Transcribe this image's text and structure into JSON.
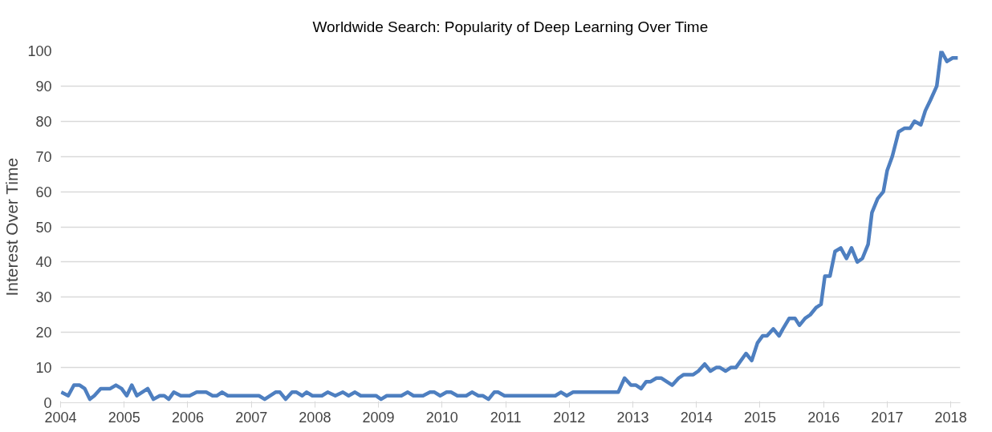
{
  "chart_data": {
    "type": "line",
    "title": "Worldwide Search: Popularity of Deep Learning Over Time",
    "ylabel": "Interest Over Time",
    "xlim": [
      2004,
      2018.15
    ],
    "xticks": [
      2004,
      2005,
      2006,
      2007,
      2008,
      2009,
      2010,
      2011,
      2012,
      2013,
      2014,
      2015,
      2016,
      2017,
      2018
    ],
    "ylim": [
      0,
      100
    ],
    "yticks": [
      0,
      10,
      20,
      30,
      40,
      50,
      60,
      70,
      80,
      90,
      100
    ],
    "grid": "y",
    "marker": "none",
    "line_style": "solid",
    "series": [
      {
        "color": "#4e7fc0",
        "x": [
          2004.01,
          2004.12,
          2004.21,
          2004.3,
          2004.38,
          2004.46,
          2004.53,
          2004.63,
          2004.78,
          2004.87,
          2004.96,
          2005.04,
          2005.12,
          2005.2,
          2005.37,
          2005.46,
          2005.56,
          2005.63,
          2005.7,
          2005.78,
          2005.89,
          2006.03,
          2006.14,
          2006.29,
          2006.39,
          2006.46,
          2006.54,
          2006.63,
          2007.12,
          2007.21,
          2007.38,
          2007.45,
          2007.54,
          2007.64,
          2007.71,
          2007.8,
          2007.87,
          2007.96,
          2008.11,
          2008.2,
          2008.32,
          2008.44,
          2008.53,
          2008.63,
          2008.72,
          2008.96,
          2009.04,
          2009.13,
          2009.36,
          2009.46,
          2009.55,
          2009.7,
          2009.81,
          2009.88,
          2009.97,
          2010.07,
          2010.14,
          2010.24,
          2010.38,
          2010.47,
          2010.57,
          2010.64,
          2010.73,
          2010.82,
          2010.88,
          2010.98,
          2011.78,
          2011.87,
          2011.96,
          2012.06,
          2012.77,
          2012.87,
          2012.97,
          2013.05,
          2013.13,
          2013.21,
          2013.28,
          2013.37,
          2013.45,
          2013.62,
          2013.72,
          2013.8,
          2013.95,
          2014.03,
          2014.13,
          2014.22,
          2014.31,
          2014.37,
          2014.46,
          2014.54,
          2014.62,
          2014.78,
          2014.87,
          2014.96,
          2015.04,
          2015.11,
          2015.21,
          2015.3,
          2015.36,
          2015.46,
          2015.55,
          2015.62,
          2015.71,
          2015.79,
          2015.88,
          2015.96,
          2016.02,
          2016.1,
          2016.18,
          2016.27,
          2016.36,
          2016.44,
          2016.53,
          2016.61,
          2016.7,
          2016.76,
          2016.85,
          2016.94,
          2017.0,
          2017.08,
          2017.18,
          2017.27,
          2017.36,
          2017.43,
          2017.53,
          2017.6,
          2017.68,
          2017.78,
          2017.85,
          2017.94,
          2018.03,
          2018.11
        ],
        "values": [
          3,
          2,
          5,
          5,
          4,
          1,
          2,
          4,
          4,
          5,
          4,
          2,
          5,
          2,
          4,
          1,
          2,
          2,
          1,
          3,
          2,
          2,
          3,
          3,
          2,
          2,
          3,
          2,
          2,
          1,
          3,
          3,
          1,
          3,
          3,
          2,
          3,
          2,
          2,
          3,
          2,
          3,
          2,
          3,
          2,
          2,
          1,
          2,
          2,
          3,
          2,
          2,
          3,
          3,
          2,
          3,
          3,
          2,
          2,
          3,
          2,
          2,
          1,
          3,
          3,
          2,
          2,
          3,
          2,
          3,
          3,
          7,
          5,
          5,
          4,
          6,
          6,
          7,
          7,
          5,
          7,
          8,
          8,
          9,
          11,
          9,
          10,
          10,
          9,
          10,
          10,
          14,
          12,
          17,
          19,
          19,
          21,
          19,
          21,
          24,
          24,
          22,
          24,
          25,
          27,
          28,
          36,
          36,
          43,
          44,
          41,
          44,
          40,
          41,
          45,
          54,
          58,
          60,
          66,
          70,
          77,
          78,
          78,
          80,
          79,
          83,
          86,
          90,
          100,
          97,
          98,
          98
        ]
      }
    ]
  }
}
